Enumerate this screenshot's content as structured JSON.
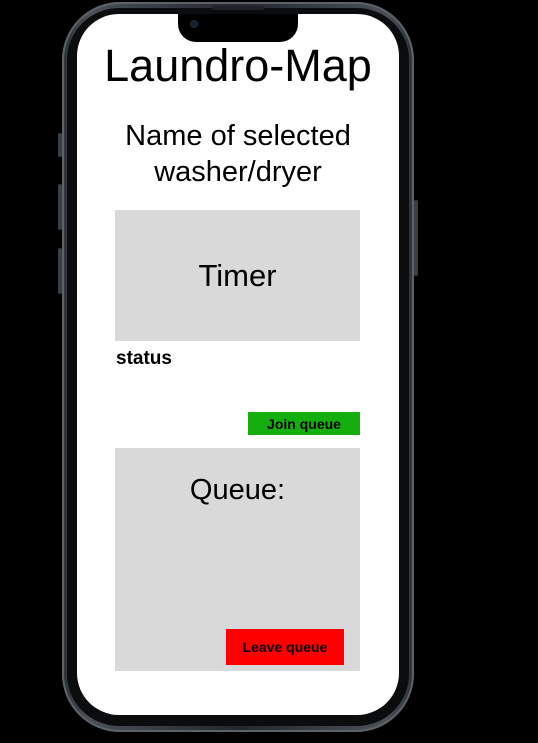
{
  "app": {
    "title": "Laundro-Map"
  },
  "machine": {
    "name_line1": "Name of selected",
    "name_line2": "washer/dryer",
    "timer_label": "Timer",
    "status_label": "status"
  },
  "actions": {
    "join_queue_label": "Join queue",
    "leave_queue_label": "Leave queue"
  },
  "queue": {
    "heading": "Queue:"
  },
  "colors": {
    "join_button": "#14ae0e",
    "leave_button": "#ff0000",
    "panel_gray": "#d9d9d9",
    "background": "#000000",
    "screen": "#ffffff"
  }
}
